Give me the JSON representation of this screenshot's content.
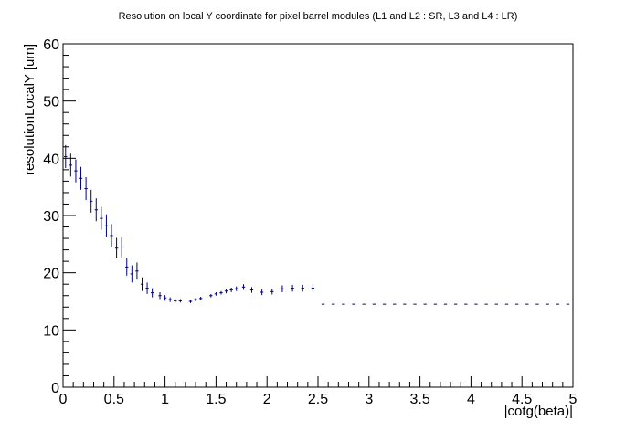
{
  "chart_data": {
    "type": "scatter",
    "title": "Resolution on local Y coordinate for pixel barrel modules (L1 and L2 : SR, L3 and L4 : LR)",
    "xlabel": "|cotg(beta)|",
    "ylabel": "resolutionLocalY [um]",
    "xlim": [
      0,
      5
    ],
    "ylim": [
      0,
      60
    ],
    "x_ticks": [
      "0",
      "0.5",
      "1",
      "1.5",
      "2",
      "2.5",
      "3",
      "3.5",
      "4",
      "4.5",
      "5"
    ],
    "y_ticks": [
      "0",
      "10",
      "20",
      "30",
      "40",
      "50",
      "60"
    ],
    "grid": false,
    "legend": "none",
    "marker_color": "#000080",
    "series": [
      {
        "x": [
          0.025,
          0.075,
          0.125,
          0.175,
          0.225,
          0.275,
          0.325,
          0.375,
          0.425,
          0.475,
          0.525,
          0.575,
          0.625,
          0.675,
          0.725,
          0.775,
          0.825,
          0.875,
          0.95,
          1.0,
          1.05,
          1.1,
          1.15,
          1.25,
          1.3,
          1.35,
          1.45,
          1.5,
          1.55,
          1.6,
          1.65,
          1.7,
          1.77,
          1.85,
          1.95,
          2.05,
          2.15,
          2.25,
          2.35,
          2.45,
          2.55,
          2.65,
          2.75,
          2.85,
          2.95,
          3.05,
          3.15,
          3.25,
          3.35,
          3.45,
          3.55,
          3.65,
          3.75,
          3.85,
          3.95,
          4.05,
          4.15,
          4.25,
          4.35,
          4.45,
          4.55,
          4.65,
          4.75,
          4.85,
          4.95
        ],
        "y": [
          40.3,
          38.8,
          37.8,
          36.5,
          34.7,
          32.5,
          31.0,
          29.5,
          28.2,
          26.5,
          24.3,
          24.5,
          21.0,
          19.8,
          20.3,
          18.0,
          17.3,
          16.5,
          16.0,
          15.6,
          15.3,
          15.1,
          15.1,
          15.0,
          15.3,
          15.5,
          16.0,
          16.3,
          16.5,
          16.8,
          17.0,
          17.2,
          17.5,
          17.0,
          16.6,
          16.7,
          17.2,
          17.3,
          17.3,
          17.3,
          14.5,
          14.5,
          14.5,
          14.5,
          14.5,
          14.5,
          14.5,
          14.5,
          14.5,
          14.5,
          14.5,
          14.5,
          14.5,
          14.5,
          14.5,
          14.5,
          14.5,
          14.5,
          14.5,
          14.5,
          14.5,
          14.5,
          14.5,
          14.5,
          14.5
        ],
        "y_err": [
          2.0,
          2.0,
          2.0,
          2.0,
          2.0,
          2.0,
          2.0,
          2.0,
          2.0,
          2.0,
          1.8,
          1.8,
          1.5,
          1.5,
          1.5,
          1.2,
          1.0,
          0.8,
          0.6,
          0.5,
          0.4,
          0.3,
          0.3,
          0.3,
          0.3,
          0.3,
          0.3,
          0.3,
          0.3,
          0.4,
          0.4,
          0.4,
          0.5,
          0.5,
          0.5,
          0.5,
          0.6,
          0.6,
          0.6,
          0.6,
          0,
          0,
          0,
          0,
          0,
          0,
          0,
          0,
          0,
          0,
          0,
          0,
          0,
          0,
          0,
          0,
          0,
          0,
          0,
          0,
          0,
          0,
          0,
          0,
          0
        ]
      }
    ]
  }
}
